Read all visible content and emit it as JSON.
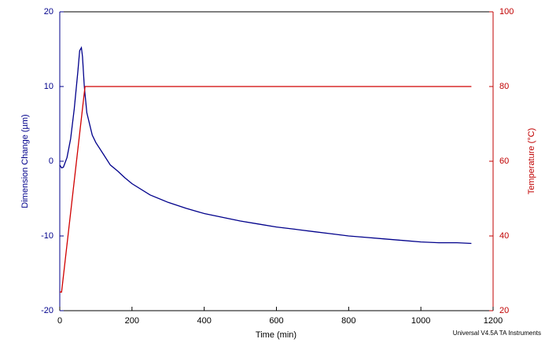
{
  "chart_data": {
    "type": "line",
    "xlabel": "Time (min)",
    "ylabel": "Dimension Change (µm)",
    "y2label": "Temperature (°C)",
    "footer": "Universal V4.5A TA Instruments",
    "xlim": [
      0,
      1200
    ],
    "xticks": [
      0,
      200,
      400,
      600,
      800,
      1000,
      1200
    ],
    "ylim": [
      -20,
      20
    ],
    "yticks": [
      -20,
      -10,
      0,
      10,
      20
    ],
    "y2lim": [
      20,
      100
    ],
    "y2ticks": [
      20,
      40,
      60,
      80,
      100
    ],
    "left_axis_color": "#00008b",
    "right_axis_color": "#c00000",
    "series": [
      {
        "color": "#00008b",
        "axis": "y",
        "x": [
          0,
          5,
          10,
          20,
          30,
          40,
          50,
          55,
          60,
          63,
          68,
          75,
          90,
          100,
          120,
          140,
          160,
          180,
          200,
          250,
          300,
          350,
          400,
          450,
          500,
          550,
          600,
          650,
          700,
          750,
          800,
          850,
          900,
          950,
          1000,
          1050,
          1100,
          1140
        ],
        "values": [
          -0.5,
          -0.9,
          -0.8,
          0.5,
          3,
          7,
          12,
          14.8,
          15.2,
          14,
          10,
          6.5,
          3.5,
          2.5,
          1,
          -0.5,
          -1.3,
          -2.2,
          -3.0,
          -4.5,
          -5.5,
          -6.3,
          -7.0,
          -7.5,
          -8.0,
          -8.4,
          -8.8,
          -9.1,
          -9.4,
          -9.7,
          -10.0,
          -10.2,
          -10.4,
          -10.6,
          -10.8,
          -10.9,
          -10.9,
          -11.0
        ]
      },
      {
        "color": "#d00000",
        "axis": "y2",
        "x": [
          0,
          5,
          70,
          1140
        ],
        "values": [
          25,
          25,
          80,
          80
        ]
      }
    ]
  }
}
